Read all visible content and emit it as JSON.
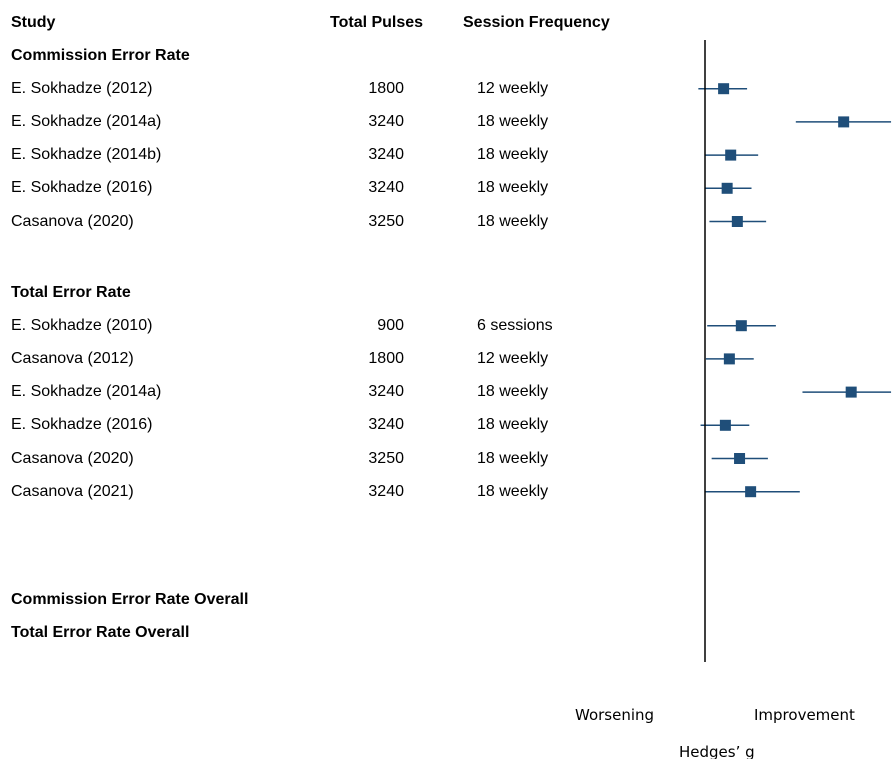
{
  "chart_data": {
    "type": "forest",
    "header": {
      "study": "Study",
      "pulses": "Total Pulses",
      "frequency": "Session Frequency"
    },
    "groups": [
      {
        "label": "Commission Error Rate",
        "studies": [
          {
            "name": "E. Sokhadze (2012)",
            "pulses": "1800",
            "frequency": "12 weekly",
            "g": 0.42,
            "lower": -0.15,
            "upper": 0.95
          },
          {
            "name": "E. Sokhadze (2014a)",
            "pulses": "3240",
            "frequency": "18 weekly",
            "g": 3.13,
            "lower": 2.05,
            "upper": 4.2
          },
          {
            "name": "E. Sokhadze (2014b)",
            "pulses": "3240",
            "frequency": "18 weekly",
            "g": 0.58,
            "lower": 0.0,
            "upper": 1.2
          },
          {
            "name": "E. Sokhadze (2016)",
            "pulses": "3240",
            "frequency": "18 weekly",
            "g": 0.5,
            "lower": 0.0,
            "upper": 1.05
          },
          {
            "name": "Casanova (2020)",
            "pulses": "3250",
            "frequency": "18 weekly",
            "g": 0.73,
            "lower": 0.1,
            "upper": 1.38
          }
        ]
      },
      {
        "label": "Total Error Rate",
        "studies": [
          {
            "name": "E. Sokhadze (2010)",
            "pulses": "900",
            "frequency": "6 sessions",
            "g": 0.82,
            "lower": 0.05,
            "upper": 1.6
          },
          {
            "name": "Casanova (2012)",
            "pulses": "1800",
            "frequency": "12 weekly",
            "g": 0.55,
            "lower": 0.02,
            "upper": 1.1
          },
          {
            "name": "E. Sokhadze (2014a)",
            "pulses": "3240",
            "frequency": "18 weekly",
            "g": 3.3,
            "lower": 2.2,
            "upper": 4.2
          },
          {
            "name": "E. Sokhadze (2016)",
            "pulses": "3240",
            "frequency": "18 weekly",
            "g": 0.46,
            "lower": -0.1,
            "upper": 1.0
          },
          {
            "name": "Casanova (2020)",
            "pulses": "3250",
            "frequency": "18 weekly",
            "g": 0.78,
            "lower": 0.15,
            "upper": 1.42
          },
          {
            "name": "Casanova (2021)",
            "pulses": "3240",
            "frequency": "18 weekly",
            "g": 1.03,
            "lower": 0.0,
            "upper": 2.14
          }
        ]
      }
    ],
    "overall_labels": [
      "Commission Error Rate Overall",
      "Total Error Rate Overall"
    ],
    "null_line": 0,
    "xlim": [
      -0.15,
      4.2
    ],
    "direction_labels": {
      "left": "Worsening",
      "right": "Improvement"
    },
    "xlabel": "Hedges’ g",
    "colors": {
      "marker": "#1f4e79",
      "ci": "#1f4e79",
      "axis": "#000000"
    }
  }
}
